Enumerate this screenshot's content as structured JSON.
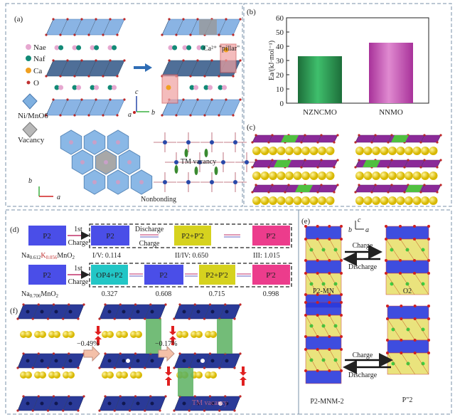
{
  "panels": {
    "a": {
      "label": "(a)",
      "legend": [
        "Nae",
        "Naf",
        "Ca",
        "O",
        "Ni/MnO6",
        "Vacancy"
      ],
      "pillar_label": "Ca²⁺ \"pillar\"",
      "axes_top": {
        "c": "c",
        "a": "a",
        "b": "b"
      },
      "axes_bottom": {
        "b": "b",
        "a": "a"
      },
      "tm_vacancy": "TM vacancy",
      "nonbonding": "Nonbonding"
    },
    "b": {
      "label": "(b)"
    },
    "c": {
      "label": "(c)"
    },
    "d": {
      "label": "(d)",
      "row1": {
        "formula_main": "Na",
        "formula_sub1": "0.612",
        "formula_k": "K",
        "formula_sub2": "0.056",
        "formula_end": "MnO",
        "formula_sub3": "2",
        "start": "P2",
        "step": "1st",
        "step2": "Charge",
        "boxes": [
          "P2",
          "P2+P'2",
          "P'2"
        ],
        "mid_top": "Discharge",
        "mid_bottom": "Charge",
        "values": [
          "I/V: 0.114",
          "II/IV: 0.650",
          "III: 1.015"
        ]
      },
      "row2": {
        "formula_main": "Na",
        "formula_sub1": "0.706",
        "formula_end": "MnO",
        "formula_sub3": "2",
        "start": "P2",
        "step": "1st",
        "step2": "Charge",
        "boxes": [
          "OP4+P2",
          "P2",
          "P2+P'2",
          "P'2"
        ],
        "values": [
          "0.327",
          "0.608",
          "0.715",
          "0.998"
        ]
      },
      "colors": {
        "p2": "#4a4ee8",
        "mix": "#d6d21e",
        "pp2": "#ec3c8c",
        "op4": "#22c6c6",
        "arrow": "#c0306a"
      }
    },
    "e": {
      "label": "(e)",
      "axes": {
        "b": "b",
        "c": "c",
        "a": "a"
      },
      "top": {
        "left": "P2-MN",
        "right": "O2",
        "charge": "Charge",
        "discharge": "Discharge"
      },
      "bottom": {
        "left": "P2-MNM-2",
        "right": "P\"2",
        "charge": "Charge",
        "discharge": "Discharge"
      }
    },
    "f": {
      "label": "(f)",
      "strain1": "−0.49%",
      "strain2": "−0.17%",
      "tm_vacancy": "TM vacancy"
    }
  },
  "chart_data": {
    "type": "bar",
    "categories": [
      "NZNCMO",
      "NNMO"
    ],
    "values": [
      33,
      42.5
    ],
    "ylabel": "Ea/(kJ·mol⁻¹)",
    "ylim": [
      0,
      60
    ],
    "yticks": [
      "0",
      "10",
      "20",
      "30",
      "40",
      "50",
      "60"
    ],
    "colors": [
      "#2e9a55",
      "#c050b0"
    ],
    "grid": false
  }
}
